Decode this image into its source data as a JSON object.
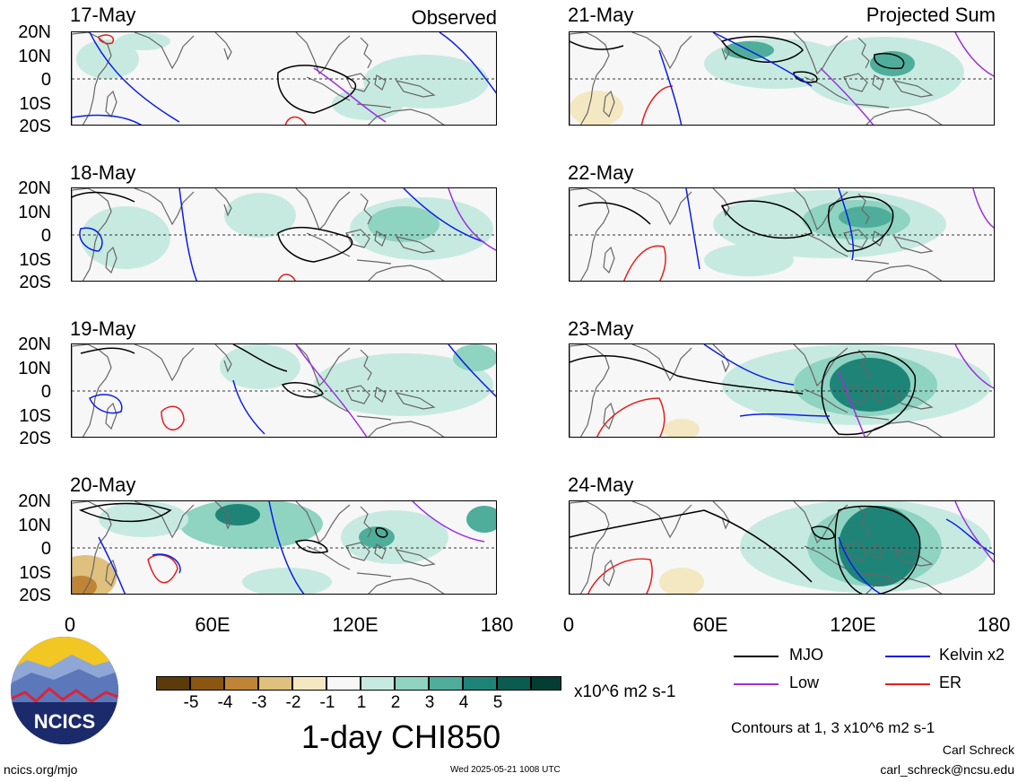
{
  "header": {
    "left_label": "Observed",
    "right_label": "Projected Sum"
  },
  "lat_labels": [
    "20N",
    "10N",
    "0",
    "10S",
    "20S"
  ],
  "lon_labels": [
    "0",
    "60E",
    "120E",
    "180"
  ],
  "panels_left": [
    {
      "date": "17-May"
    },
    {
      "date": "18-May"
    },
    {
      "date": "19-May"
    },
    {
      "date": "20-May"
    }
  ],
  "panels_right": [
    {
      "date": "21-May"
    },
    {
      "date": "22-May"
    },
    {
      "date": "23-May"
    },
    {
      "date": "24-May"
    }
  ],
  "colorbar": {
    "ticks": [
      "-5",
      "-4",
      "-3",
      "-2",
      "-1",
      "1",
      "2",
      "3",
      "4",
      "5"
    ],
    "colors": [
      "#5c3a0a",
      "#8c5511",
      "#bf8436",
      "#dfc07c",
      "#f4e8c2",
      "#f7f7f7",
      "#c7eae0",
      "#8fd3c1",
      "#4fae9b",
      "#1f8478",
      "#0b5c50",
      "#033d33"
    ],
    "units": "x10^6 m2 s-1",
    "title": "1-day CHI850"
  },
  "legend": {
    "mjo": "MJO",
    "low": "Low",
    "kelvin": "Kelvin x2",
    "er": "ER",
    "colors": {
      "mjo": "#000000",
      "low": "#9b30e0",
      "kelvin": "#0a1ee6",
      "er": "#e61e1e"
    }
  },
  "contours_note": "Contours at 1, 3 x10^6 m2 s-1",
  "author": "Carl Schreck",
  "email": "carl_schreck@ncsu.edu",
  "website": "ncics.org/mjo",
  "timestamp": "Wed 2025-05-21 1008 UTC",
  "logo_text": "NCICS"
}
